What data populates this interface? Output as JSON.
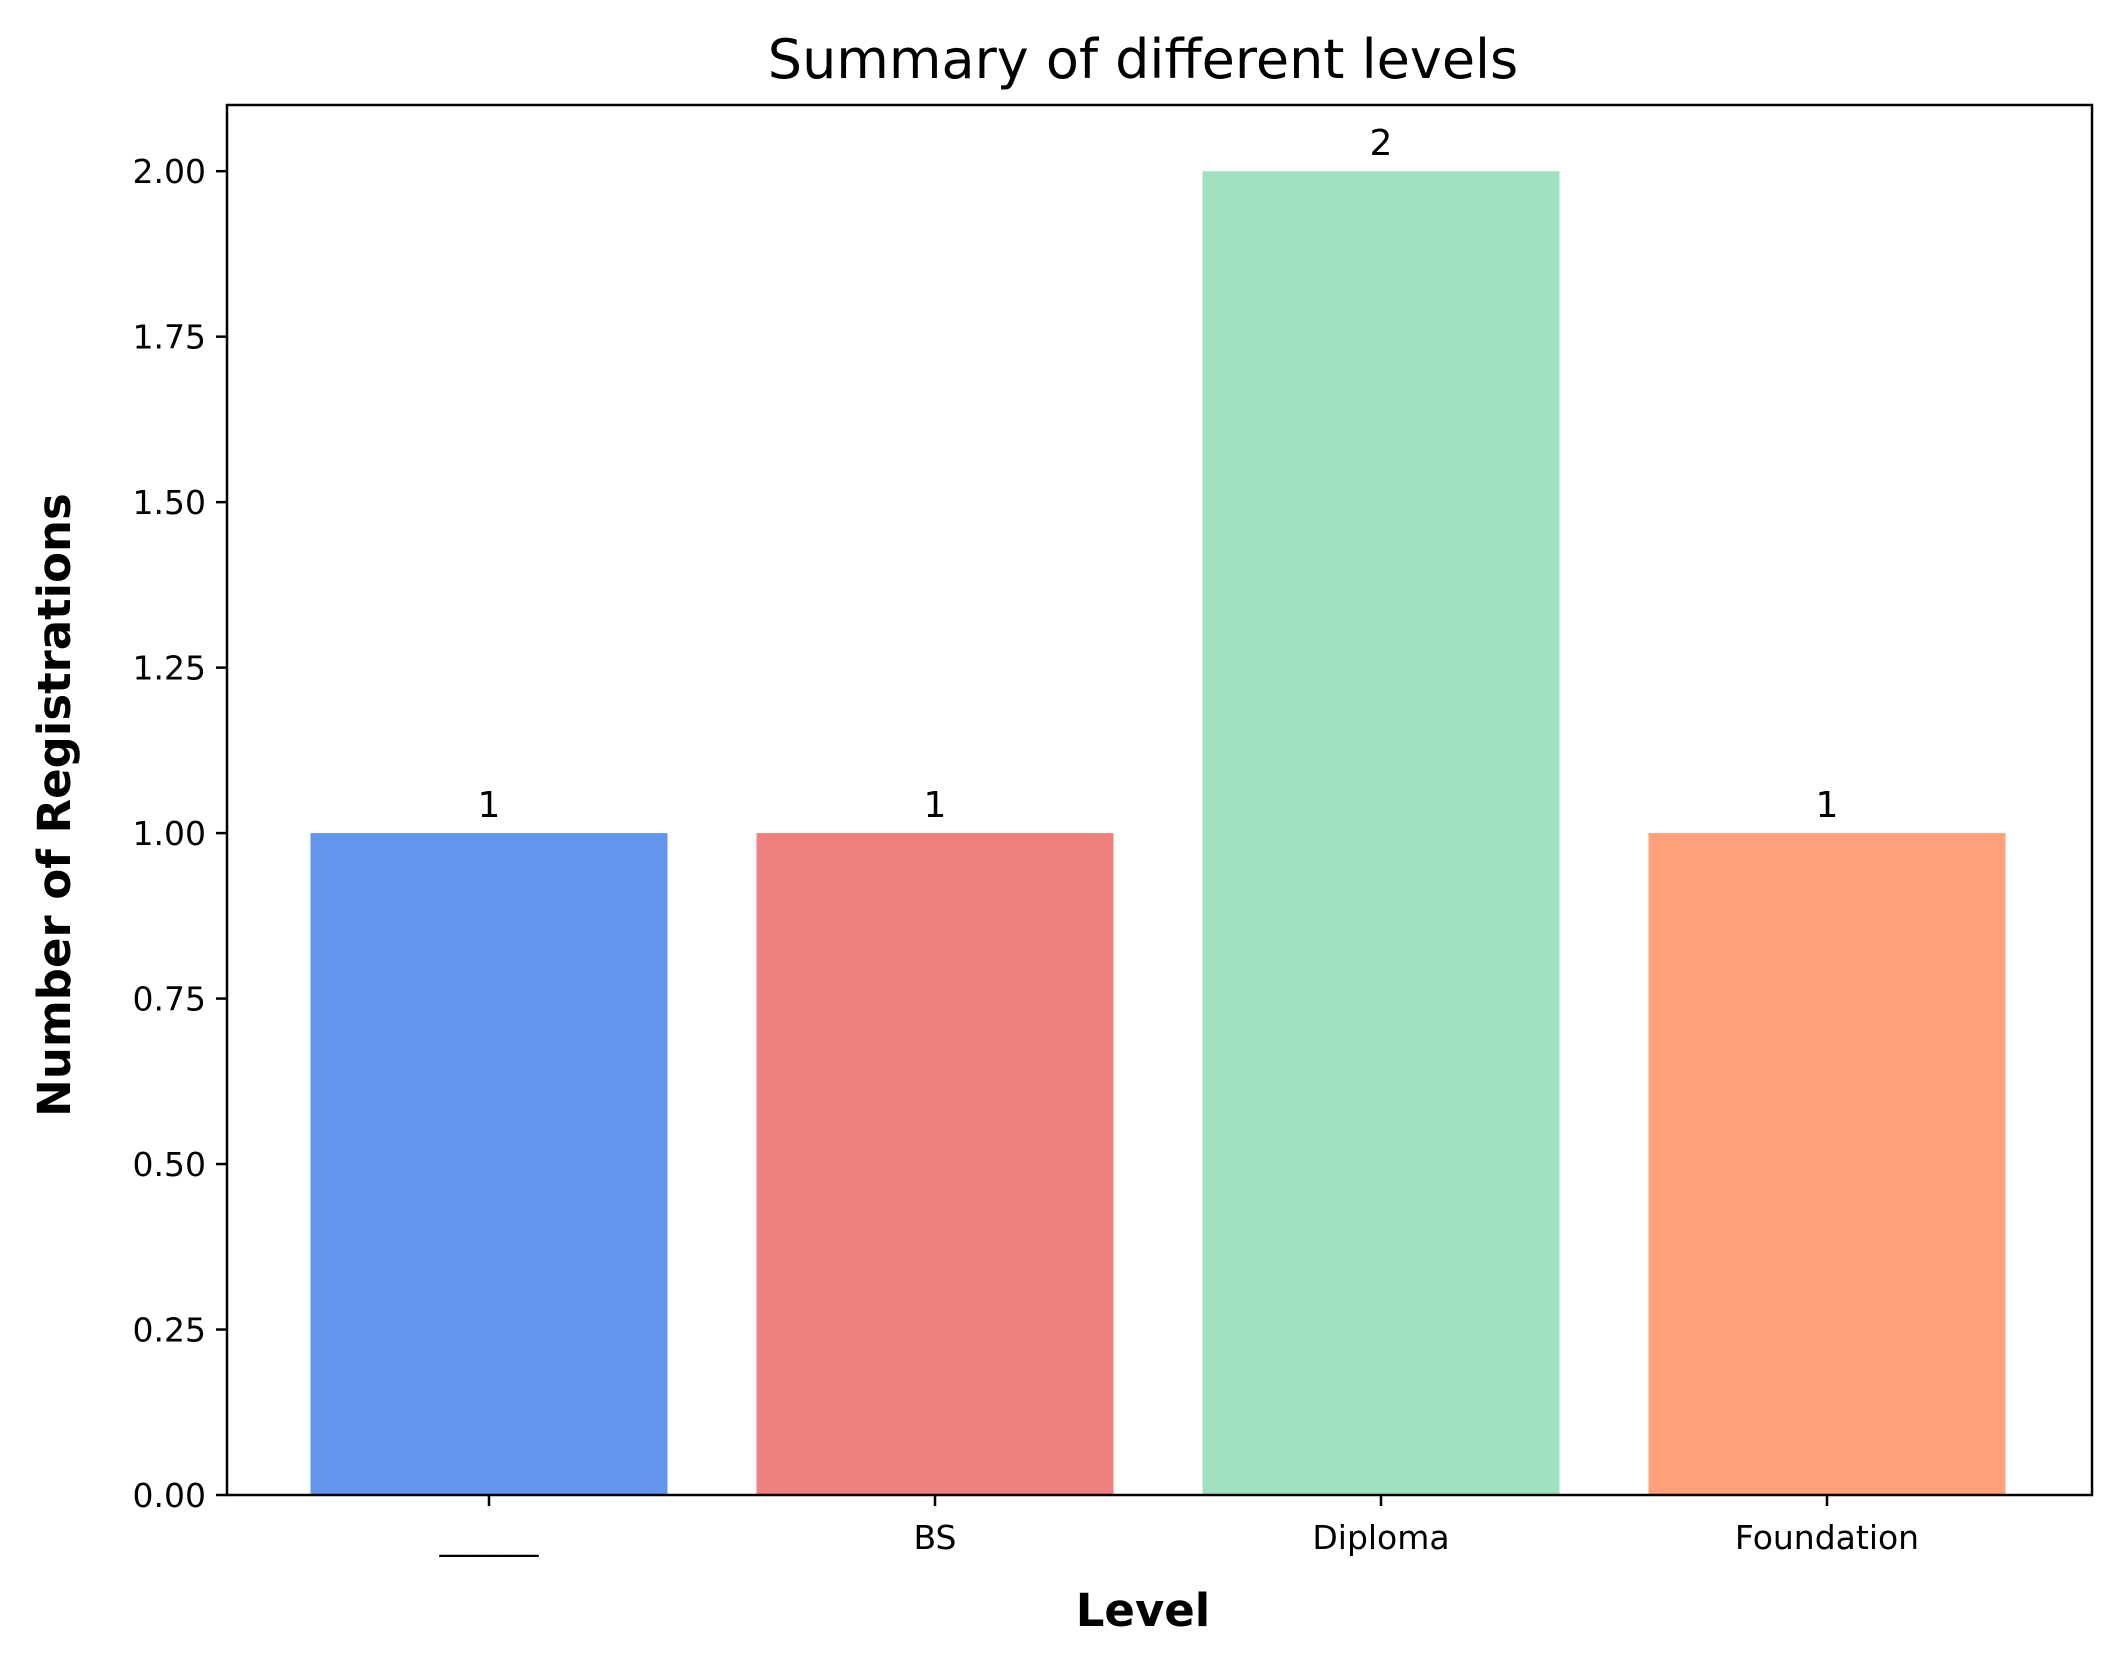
{
  "chart_data": {
    "type": "bar",
    "title": "Summary of different levels",
    "xlabel": "Level",
    "ylabel": "Number of Registrations",
    "categories": [
      "______",
      "BS",
      "Diploma",
      "Foundation"
    ],
    "values": [
      1,
      1,
      2,
      1
    ],
    "data_labels": [
      "1",
      "1",
      "2",
      "1"
    ],
    "colors": [
      "#6495ED",
      "#F08080",
      "#A0E2C0",
      "#FFA07A"
    ],
    "ylim": [
      0,
      2.1
    ],
    "yticks": [
      0,
      0.25,
      0.5,
      0.75,
      1.0,
      1.25,
      1.5,
      1.75,
      2.0
    ],
    "ytick_labels": [
      "0.00",
      "0.25",
      "0.50",
      "0.75",
      "1.00",
      "1.25",
      "1.50",
      "1.75",
      "2.00"
    ],
    "grid": false,
    "legend": "none"
  }
}
